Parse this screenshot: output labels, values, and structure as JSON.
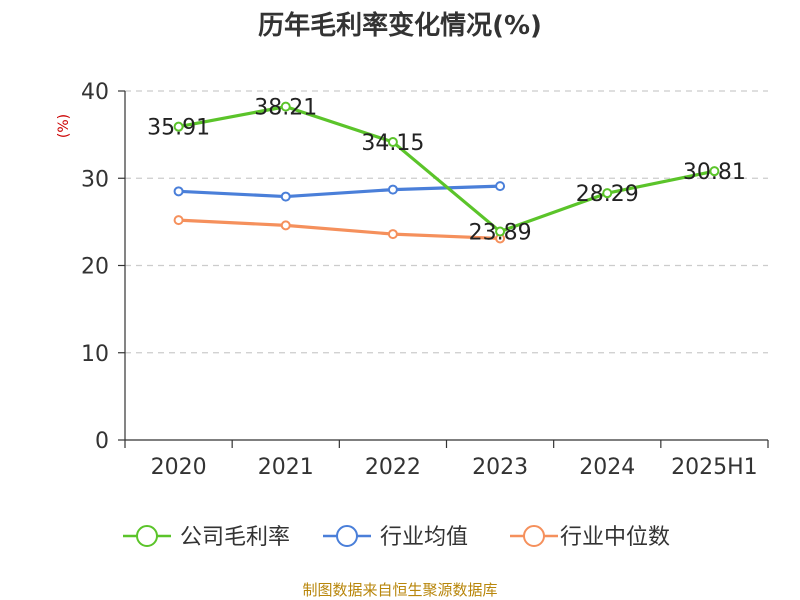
{
  "chart_data": {
    "type": "line",
    "title": "历年毛利率变化情况(%)",
    "ylabel": "(%)",
    "xlabel": "",
    "ylim": [
      0,
      40
    ],
    "yticks": [
      "0",
      "10",
      "20",
      "30",
      "40"
    ],
    "categories": [
      "2020",
      "2021",
      "2022",
      "2023",
      "2024",
      "2025H1"
    ],
    "grid": true,
    "legend_position": "bottom",
    "series": [
      {
        "name": "公司毛利率",
        "color": "#5bc42a",
        "values": [
          35.91,
          38.21,
          34.15,
          23.89,
          28.29,
          30.81
        ],
        "labels": [
          "35.91",
          "38.21",
          "34.15",
          "23.89",
          "28.29",
          "30.81"
        ]
      },
      {
        "name": "行业均值",
        "color": "#4a7fd9",
        "values": [
          28.5,
          27.9,
          28.7,
          29.1,
          null,
          null
        ]
      },
      {
        "name": "行业中位数",
        "color": "#f5905c",
        "values": [
          25.2,
          24.6,
          23.6,
          23.1,
          null,
          null
        ]
      }
    ]
  },
  "source_text": "制图数据来自恒生聚源数据库"
}
